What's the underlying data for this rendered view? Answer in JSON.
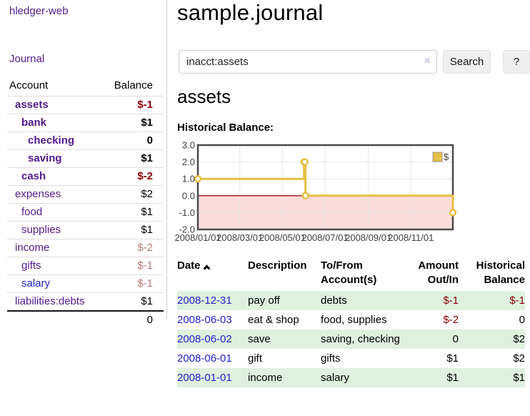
{
  "app": {
    "brand": "hledger-web",
    "nav_journal": "Journal"
  },
  "colors": {
    "link_purple": "#551a8b",
    "link_blue": "#2222cc",
    "negative": "#8b0000",
    "negative_muted": "#b87878",
    "row_green": "#dff0df",
    "chart_gold": "#e6bf45"
  },
  "sidebar": {
    "account_col": "Account",
    "balance_col": "Balance",
    "accounts": [
      {
        "name": "assets",
        "depth": 1,
        "balance": "$-1",
        "bold": true,
        "name_color": "purple",
        "balance_style": "negative"
      },
      {
        "name": "bank",
        "depth": 2,
        "balance": "$1",
        "bold": true,
        "name_color": "purple",
        "balance_style": "normal"
      },
      {
        "name": "checking",
        "depth": 3,
        "balance": "0",
        "bold": true,
        "name_color": "purple",
        "balance_style": "normal"
      },
      {
        "name": "saving",
        "depth": 3,
        "balance": "$1",
        "bold": true,
        "name_color": "purple",
        "balance_style": "normal"
      },
      {
        "name": "cash",
        "depth": 2,
        "balance": "$-2",
        "bold": true,
        "name_color": "purple",
        "balance_style": "negative"
      },
      {
        "name": "expenses",
        "depth": 1,
        "balance": "$2",
        "bold": false,
        "name_color": "purple",
        "balance_style": "normal"
      },
      {
        "name": "food",
        "depth": 2,
        "balance": "$1",
        "bold": false,
        "name_color": "purple",
        "balance_style": "normal"
      },
      {
        "name": "supplies",
        "depth": 2,
        "balance": "$1",
        "bold": false,
        "name_color": "purple",
        "balance_style": "normal"
      },
      {
        "name": "income",
        "depth": 1,
        "balance": "$-2",
        "bold": false,
        "name_color": "purple",
        "balance_style": "negative-muted"
      },
      {
        "name": "gifts",
        "depth": 2,
        "balance": "$-1",
        "bold": false,
        "name_color": "purple",
        "balance_style": "negative-muted"
      },
      {
        "name": "salary",
        "depth": 2,
        "balance": "$-1",
        "bold": false,
        "name_color": "blue",
        "balance_style": "negative-muted"
      },
      {
        "name": "liabilities:debts",
        "depth": 1,
        "balance": "$1",
        "bold": false,
        "name_color": "purple",
        "balance_style": "normal"
      }
    ],
    "total": "0"
  },
  "main": {
    "title": "sample.journal",
    "search": {
      "value": "inacct:assets",
      "clear_icon": "×",
      "search_button": "Search",
      "help_button": "?"
    },
    "account_heading": "assets",
    "chart_title": "Historical Balance:",
    "sort_icon": "chevron-up"
  },
  "chart_data": {
    "type": "line",
    "step": true,
    "title": "Historical Balance:",
    "series": [
      {
        "name": "$",
        "color": "#e6bf45",
        "points": [
          [
            "2008-01-01",
            1
          ],
          [
            "2008-06-01",
            2
          ],
          [
            "2008-06-02",
            2
          ],
          [
            "2008-06-03",
            0
          ],
          [
            "2008-12-31",
            -1
          ]
        ]
      }
    ],
    "x_range": [
      "2008-01-01",
      "2008-12-31"
    ],
    "ylim": [
      -2,
      3
    ],
    "y_tick_values": [
      3,
      2,
      1,
      0,
      -1,
      -2
    ],
    "y_tick_labels": [
      "3.0",
      "2.0",
      "1.0",
      "0.0",
      "-1.0",
      "-2.0"
    ],
    "x_tick_dates": [
      "2008-01-01",
      "2008-03-01",
      "2008-05-01",
      "2008-07-01",
      "2008-09-01",
      "2008-11-01"
    ],
    "x_tick_labels": [
      "2008/01/01",
      "2008/03/01",
      "2008/05/01",
      "2008/07/01",
      "2008/09/01",
      "2008/11/01"
    ],
    "legend": {
      "label": "$",
      "position": "top-right"
    },
    "grid": true,
    "colors": {
      "negative_region": "#fbdcdc",
      "zero_line": "#a01010",
      "grid_line": "#e6e6e6",
      "border": "#4a4a4a",
      "point_fill": "#ffffff",
      "legend_box_border": "#999999"
    }
  },
  "register": {
    "headers": {
      "date": "Date",
      "description": "Description",
      "accounts": "To/From Account(s)",
      "amount": "Amount Out/In",
      "balance": "Historical Balance"
    },
    "rows": [
      {
        "date": "2008-12-31",
        "description": "pay off",
        "accounts": "debts",
        "amount": "$-1",
        "amount_negative": true,
        "balance": "$-1",
        "balance_negative": true
      },
      {
        "date": "2008-06-03",
        "description": "eat & shop",
        "accounts": "food, supplies",
        "amount": "$-2",
        "amount_negative": true,
        "balance": "0",
        "balance_negative": false
      },
      {
        "date": "2008-06-02",
        "description": "save",
        "accounts": "saving, checking",
        "amount": "0",
        "amount_negative": false,
        "balance": "$2",
        "balance_negative": false
      },
      {
        "date": "2008-06-01",
        "description": "gift",
        "accounts": "gifts",
        "amount": "$1",
        "amount_negative": false,
        "balance": "$2",
        "balance_negative": false
      },
      {
        "date": "2008-01-01",
        "description": "income",
        "accounts": "salary",
        "amount": "$1",
        "amount_negative": false,
        "balance": "$1",
        "balance_negative": false
      }
    ]
  }
}
